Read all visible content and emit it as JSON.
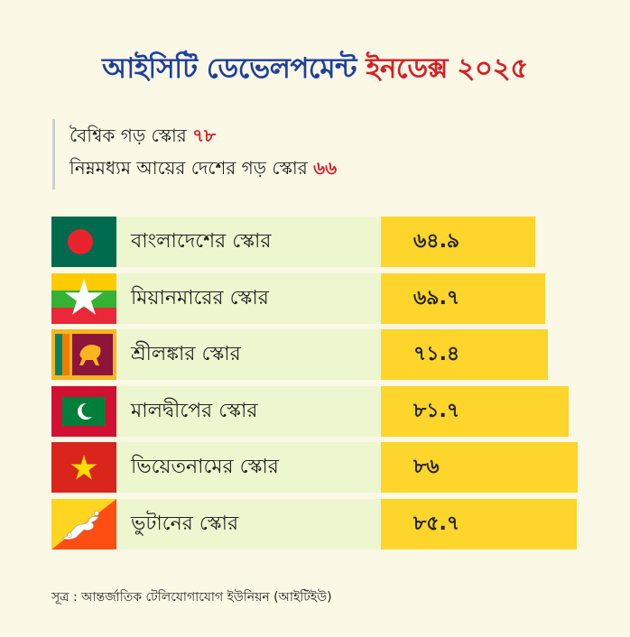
{
  "title_part1": "আইসিটি ডেভেলপমেন্ট",
  "title_part2": "ইনডেক্স ২০২৫",
  "stats": [
    {
      "label": "বৈশ্বিক গড় স্কোর",
      "value": "৭৮"
    },
    {
      "label": "নিম্নমধ্যম আয়ের দেশের গড় স্কোর",
      "value": "৬৬"
    }
  ],
  "source": "সূত্র : আন্তর্জাতিক টেলিযোগাযোগ ইউনিয়ন (আইটিইউ)",
  "colors": {
    "title_blue": "#1e3f9e",
    "accent_red": "#d61f26",
    "bar": "#fdd52b",
    "label_bg": "#ecf7cf",
    "background": "#fbf8e6"
  },
  "chart_data": {
    "type": "bar",
    "orientation": "horizontal",
    "categories": [
      "বাংলাদেশের স্কোর",
      "মিয়ানমারের স্কোর",
      "শ্রীলঙ্কার স্কোর",
      "মালদ্বীপের স্কোর",
      "ভিয়েতনামের স্কোর",
      "ভুটানের স্কোর"
    ],
    "values": [
      64.9,
      69.7,
      71.4,
      81.7,
      86,
      85.7
    ],
    "value_labels": [
      "৬৪.৯",
      "৬৯.৭",
      "৭১.৪",
      "৮১.৭",
      "৮৬",
      "৮৫.৭"
    ],
    "flags": [
      "bangladesh-flag",
      "myanmar-flag",
      "sri-lanka-flag",
      "maldives-flag",
      "vietnam-flag",
      "bhutan-flag"
    ]
  }
}
